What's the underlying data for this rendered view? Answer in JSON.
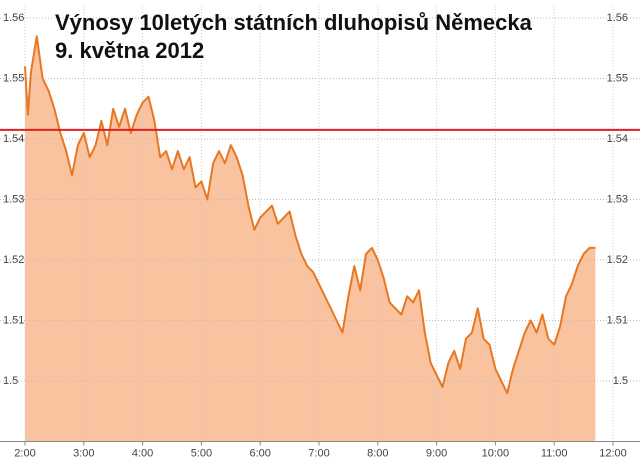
{
  "chart_data": {
    "type": "area",
    "title": "Výnosy 10letých státních dluhopisů Německa",
    "subtitle": "9. května 2012",
    "color": "#e87722",
    "fill": "#f9c3a0",
    "x": [
      2.0,
      2.05,
      2.1,
      2.2,
      2.3,
      2.4,
      2.5,
      2.6,
      2.7,
      2.8,
      2.9,
      3.0,
      3.1,
      3.2,
      3.3,
      3.4,
      3.5,
      3.6,
      3.7,
      3.8,
      3.9,
      4.0,
      4.1,
      4.2,
      4.3,
      4.4,
      4.5,
      4.6,
      4.7,
      4.8,
      4.9,
      5.0,
      5.1,
      5.2,
      5.3,
      5.4,
      5.5,
      5.6,
      5.7,
      5.8,
      5.9,
      6.0,
      6.1,
      6.2,
      6.3,
      6.4,
      6.5,
      6.6,
      6.7,
      6.8,
      6.9,
      7.0,
      7.1,
      7.2,
      7.3,
      7.4,
      7.5,
      7.6,
      7.7,
      7.8,
      7.9,
      8.0,
      8.1,
      8.2,
      8.3,
      8.4,
      8.5,
      8.6,
      8.7,
      8.8,
      8.9,
      9.0,
      9.1,
      9.2,
      9.3,
      9.4,
      9.5,
      9.6,
      9.7,
      9.8,
      9.9,
      10.0,
      10.1,
      10.2,
      10.3,
      10.4,
      10.5,
      10.6,
      10.7,
      10.8,
      10.9,
      11.0,
      11.1,
      11.2,
      11.3,
      11.4,
      11.5,
      11.6,
      11.7
    ],
    "values": [
      1.552,
      1.544,
      1.551,
      1.557,
      1.55,
      1.548,
      1.545,
      1.541,
      1.538,
      1.534,
      1.539,
      1.541,
      1.537,
      1.539,
      1.543,
      1.539,
      1.545,
      1.542,
      1.545,
      1.541,
      1.544,
      1.546,
      1.547,
      1.543,
      1.537,
      1.538,
      1.535,
      1.538,
      1.535,
      1.537,
      1.532,
      1.533,
      1.53,
      1.536,
      1.538,
      1.536,
      1.539,
      1.537,
      1.534,
      1.529,
      1.525,
      1.527,
      1.528,
      1.529,
      1.526,
      1.527,
      1.528,
      1.524,
      1.521,
      1.519,
      1.518,
      1.516,
      1.514,
      1.512,
      1.51,
      1.508,
      1.514,
      1.519,
      1.515,
      1.521,
      1.522,
      1.52,
      1.517,
      1.513,
      1.512,
      1.511,
      1.514,
      1.513,
      1.515,
      1.508,
      1.503,
      1.501,
      1.499,
      1.503,
      1.505,
      1.502,
      1.507,
      1.508,
      1.512,
      1.507,
      1.506,
      1.502,
      1.5,
      1.498,
      1.502,
      1.505,
      1.508,
      1.51,
      1.508,
      1.511,
      1.507,
      1.506,
      1.509,
      1.514,
      1.516,
      1.519,
      1.521,
      1.522,
      1.522
    ],
    "reference_line": 1.5415,
    "reference_color": "#e02020",
    "xlim": [
      2,
      12
    ],
    "xticks": [
      {
        "value": 2,
        "label": "2:00"
      },
      {
        "value": 3,
        "label": "3:00"
      },
      {
        "value": 4,
        "label": "4:00"
      },
      {
        "value": 5,
        "label": "5:00"
      },
      {
        "value": 6,
        "label": "6:00"
      },
      {
        "value": 7,
        "label": "7:00"
      },
      {
        "value": 8,
        "label": "8:00"
      },
      {
        "value": 9,
        "label": "9:00"
      },
      {
        "value": 10,
        "label": "10:00"
      },
      {
        "value": 11,
        "label": "11:00"
      },
      {
        "value": 12,
        "label": "12:00"
      }
    ],
    "ylim": [
      1.49,
      1.562
    ],
    "yticks": [
      1.5,
      1.51,
      1.52,
      1.53,
      1.54,
      1.55,
      1.56
    ],
    "grid": true
  }
}
